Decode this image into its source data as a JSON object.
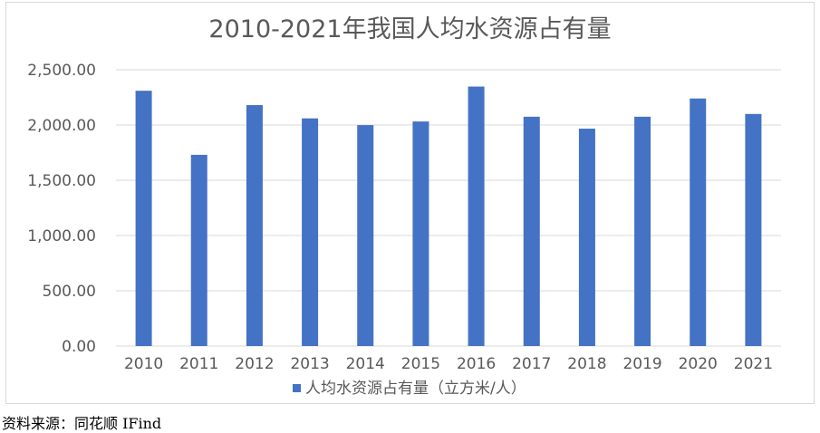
{
  "source_note": "资料来源：同花顺 IFind",
  "colors": {
    "bar": "#4472c4",
    "grid": "#d9d9d9",
    "axis_text": "#595959"
  },
  "chart_data": {
    "type": "bar",
    "title": "2010-2021年我国人均水资源占有量",
    "xlabel": "",
    "ylabel": "",
    "categories": [
      "2010",
      "2011",
      "2012",
      "2013",
      "2014",
      "2015",
      "2016",
      "2017",
      "2018",
      "2019",
      "2020",
      "2021"
    ],
    "series": [
      {
        "name": "人均水资源占有量（立方米/人）",
        "values": [
          2310,
          1730,
          2180,
          2060,
          1999,
          2032,
          2348,
          2075,
          1967,
          2075,
          2240,
          2100
        ]
      }
    ],
    "ylim": [
      0,
      2500
    ],
    "yticks": [
      "0.00",
      "500.00",
      "1,000.00",
      "1,500.00",
      "2,000.00",
      "2,500.00"
    ],
    "grid": true,
    "legend_position": "bottom"
  }
}
